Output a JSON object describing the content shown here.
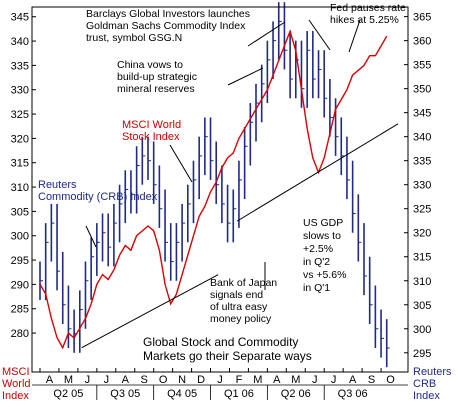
{
  "chart_data": {
    "type": "line",
    "title": "Global Stock and Commodity Markets go their Separate ways",
    "left_axis": {
      "label": [
        "MSCI",
        "World",
        "Index"
      ],
      "ylim": [
        272,
        347
      ],
      "ticks": [
        280,
        285,
        290,
        295,
        300,
        305,
        310,
        315,
        320,
        325,
        330,
        335,
        340,
        345
      ]
    },
    "right_axis": {
      "label": [
        "Reuters",
        "CRB",
        "Index"
      ],
      "ylim": [
        291,
        367
      ],
      "ticks": [
        295,
        300,
        305,
        310,
        315,
        320,
        325,
        330,
        335,
        340,
        345,
        350,
        355,
        360,
        365
      ]
    },
    "x_month_labels": [
      "A",
      "M",
      "J",
      "J",
      "A",
      "S",
      "O",
      "N",
      "D",
      "J",
      "F",
      "M",
      "A",
      "M",
      "J",
      "J",
      "A",
      "S",
      "O"
    ],
    "x_quarter_labels": [
      "Q2 05",
      "Q3 05",
      "Q4 05",
      "Q1 06",
      "Q2 06",
      "Q3 06"
    ],
    "colors": {
      "msci": "#dd0000",
      "crb": "#1f2a8a",
      "trend": "#000000"
    },
    "series": [
      {
        "name": "MSCI World Stock Index",
        "axis": "left",
        "x_month": [
          0,
          0.3,
          0.6,
          0.9,
          1.2,
          1.5,
          1.8,
          2.1,
          2.4,
          2.7,
          3.0,
          3.3,
          3.6,
          3.9,
          4.2,
          4.5,
          4.8,
          5.1,
          5.4,
          5.7,
          6.0,
          6.3,
          6.6,
          6.9,
          7.2,
          7.5,
          7.8,
          8.1,
          8.4,
          8.7,
          9.0,
          9.3,
          9.6,
          9.9,
          10.2,
          10.5,
          10.8,
          11.1,
          11.4,
          11.7,
          12.0,
          12.3,
          12.6,
          12.9,
          13.2,
          13.5,
          13.8,
          14.1,
          14.4,
          14.7,
          15.0,
          15.3,
          15.6,
          15.9,
          16.2,
          16.5,
          16.8,
          17.1,
          17.4,
          17.7,
          18.0,
          18.3
        ],
        "values": [
          290,
          288,
          283,
          279,
          277,
          280,
          279,
          281,
          283,
          286,
          290,
          292,
          291,
          293,
          296,
          298,
          297,
          300,
          301,
          302,
          301,
          297,
          290,
          286,
          288,
          292,
          296,
          300,
          304,
          306,
          309,
          311,
          314,
          316,
          317,
          320,
          322,
          324,
          326,
          328,
          330,
          333,
          336,
          339,
          342,
          338,
          330,
          322,
          316,
          313,
          316,
          321,
          326,
          328,
          330,
          333,
          334,
          335,
          337,
          337,
          339,
          341
        ]
      },
      {
        "name": "Reuters Commodity (CRB) Index",
        "axis": "right",
        "x_month": [
          0,
          0.3,
          0.6,
          0.9,
          1.2,
          1.5,
          1.8,
          2.1,
          2.4,
          2.7,
          3.0,
          3.3,
          3.6,
          3.9,
          4.2,
          4.5,
          4.8,
          5.1,
          5.4,
          5.7,
          6.0,
          6.3,
          6.6,
          6.9,
          7.2,
          7.5,
          7.8,
          8.1,
          8.4,
          8.7,
          9.0,
          9.3,
          9.6,
          9.9,
          10.2,
          10.5,
          10.8,
          11.1,
          11.4,
          11.7,
          12.0,
          12.3,
          12.6,
          12.9,
          13.2,
          13.5,
          13.8,
          14.1,
          14.4,
          14.7,
          15.0,
          15.3,
          15.6,
          15.9,
          16.2,
          16.5,
          16.8,
          17.1,
          17.4,
          17.7,
          18.0,
          18.3
        ],
        "values": [
          310,
          318,
          322,
          312,
          305,
          300,
          299,
          304,
          310,
          315,
          318,
          320,
          317,
          322,
          326,
          329,
          328,
          334,
          336,
          335,
          330,
          325,
          318,
          314,
          318,
          322,
          326,
          331,
          336,
          340,
          335,
          330,
          326,
          322,
          325,
          331,
          338,
          343,
          347,
          351,
          356,
          360,
          364,
          358,
          352,
          356,
          350,
          358,
          352,
          354,
          348,
          344,
          340,
          336,
          331,
          324,
          318,
          311,
          305,
          300,
          298,
          296
        ]
      }
    ],
    "annotations": [
      {
        "id": "gsg",
        "lines": [
          "Barclays Global Investors launches",
          "Goldman Sachs Commodity Index",
          "trust, symbol GSG.N"
        ]
      },
      {
        "id": "fed",
        "lines": [
          "Fed pauses rate",
          "hikes at 5.25%"
        ]
      },
      {
        "id": "china",
        "lines": [
          "China vows to",
          "build-up strategic",
          "mineral reserves"
        ]
      },
      {
        "id": "msci-label",
        "lines": [
          "MSCI World",
          "Stock Index"
        ]
      },
      {
        "id": "crb-label",
        "lines": [
          "Reuters",
          "Commodity (CRB) Index"
        ]
      },
      {
        "id": "usgdp",
        "lines": [
          "US GDP",
          "slows to",
          "+2.5%",
          "in Q'2",
          "vs +5.6%",
          "in Q'1"
        ]
      },
      {
        "id": "boj",
        "lines": [
          "Bank of Japan",
          "signals end",
          "of ultra easy",
          "money policy"
        ]
      }
    ],
    "grid": false,
    "legend": "none"
  }
}
